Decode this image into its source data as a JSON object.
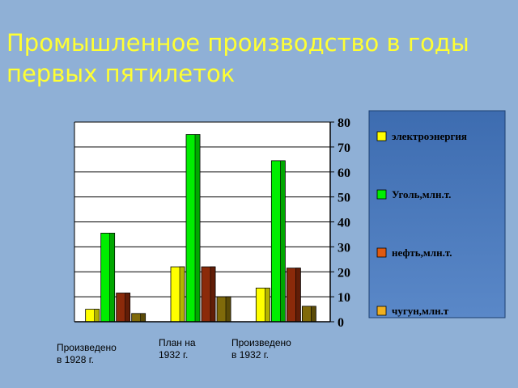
{
  "slide": {
    "title": "Промышленное производство в годы первых пятилеток"
  },
  "chart_data": {
    "type": "bar",
    "categories": [
      "Произведено\nв 1928 г.",
      "План на\n1932 г.",
      "Произведено\nв 1932 г."
    ],
    "series": [
      {
        "name": "электроэнергия",
        "color": "#ffff00",
        "values": [
          5,
          22,
          13.5
        ]
      },
      {
        "name": "Уголь,млн.т.",
        "color": "#00ee00",
        "values": [
          35.5,
          75,
          64.5
        ]
      },
      {
        "name": "нефть,млн.т.",
        "color": "#8b2a0a",
        "values": [
          11.5,
          22,
          21.5
        ]
      },
      {
        "name": "чугун,млн.т",
        "color": "#806a0a",
        "values": [
          3.3,
          10,
          6.2
        ]
      }
    ],
    "legend_colors": [
      "#ffff00",
      "#00ee00",
      "#e05a10",
      "#f0b020"
    ],
    "ylim": [
      0,
      80
    ],
    "yticks": [
      0,
      10,
      20,
      30,
      40,
      50,
      60,
      70,
      80
    ],
    "y_axis_position": "right",
    "grid": true,
    "legend_position": "right",
    "legend_background": "#4a78b8"
  }
}
